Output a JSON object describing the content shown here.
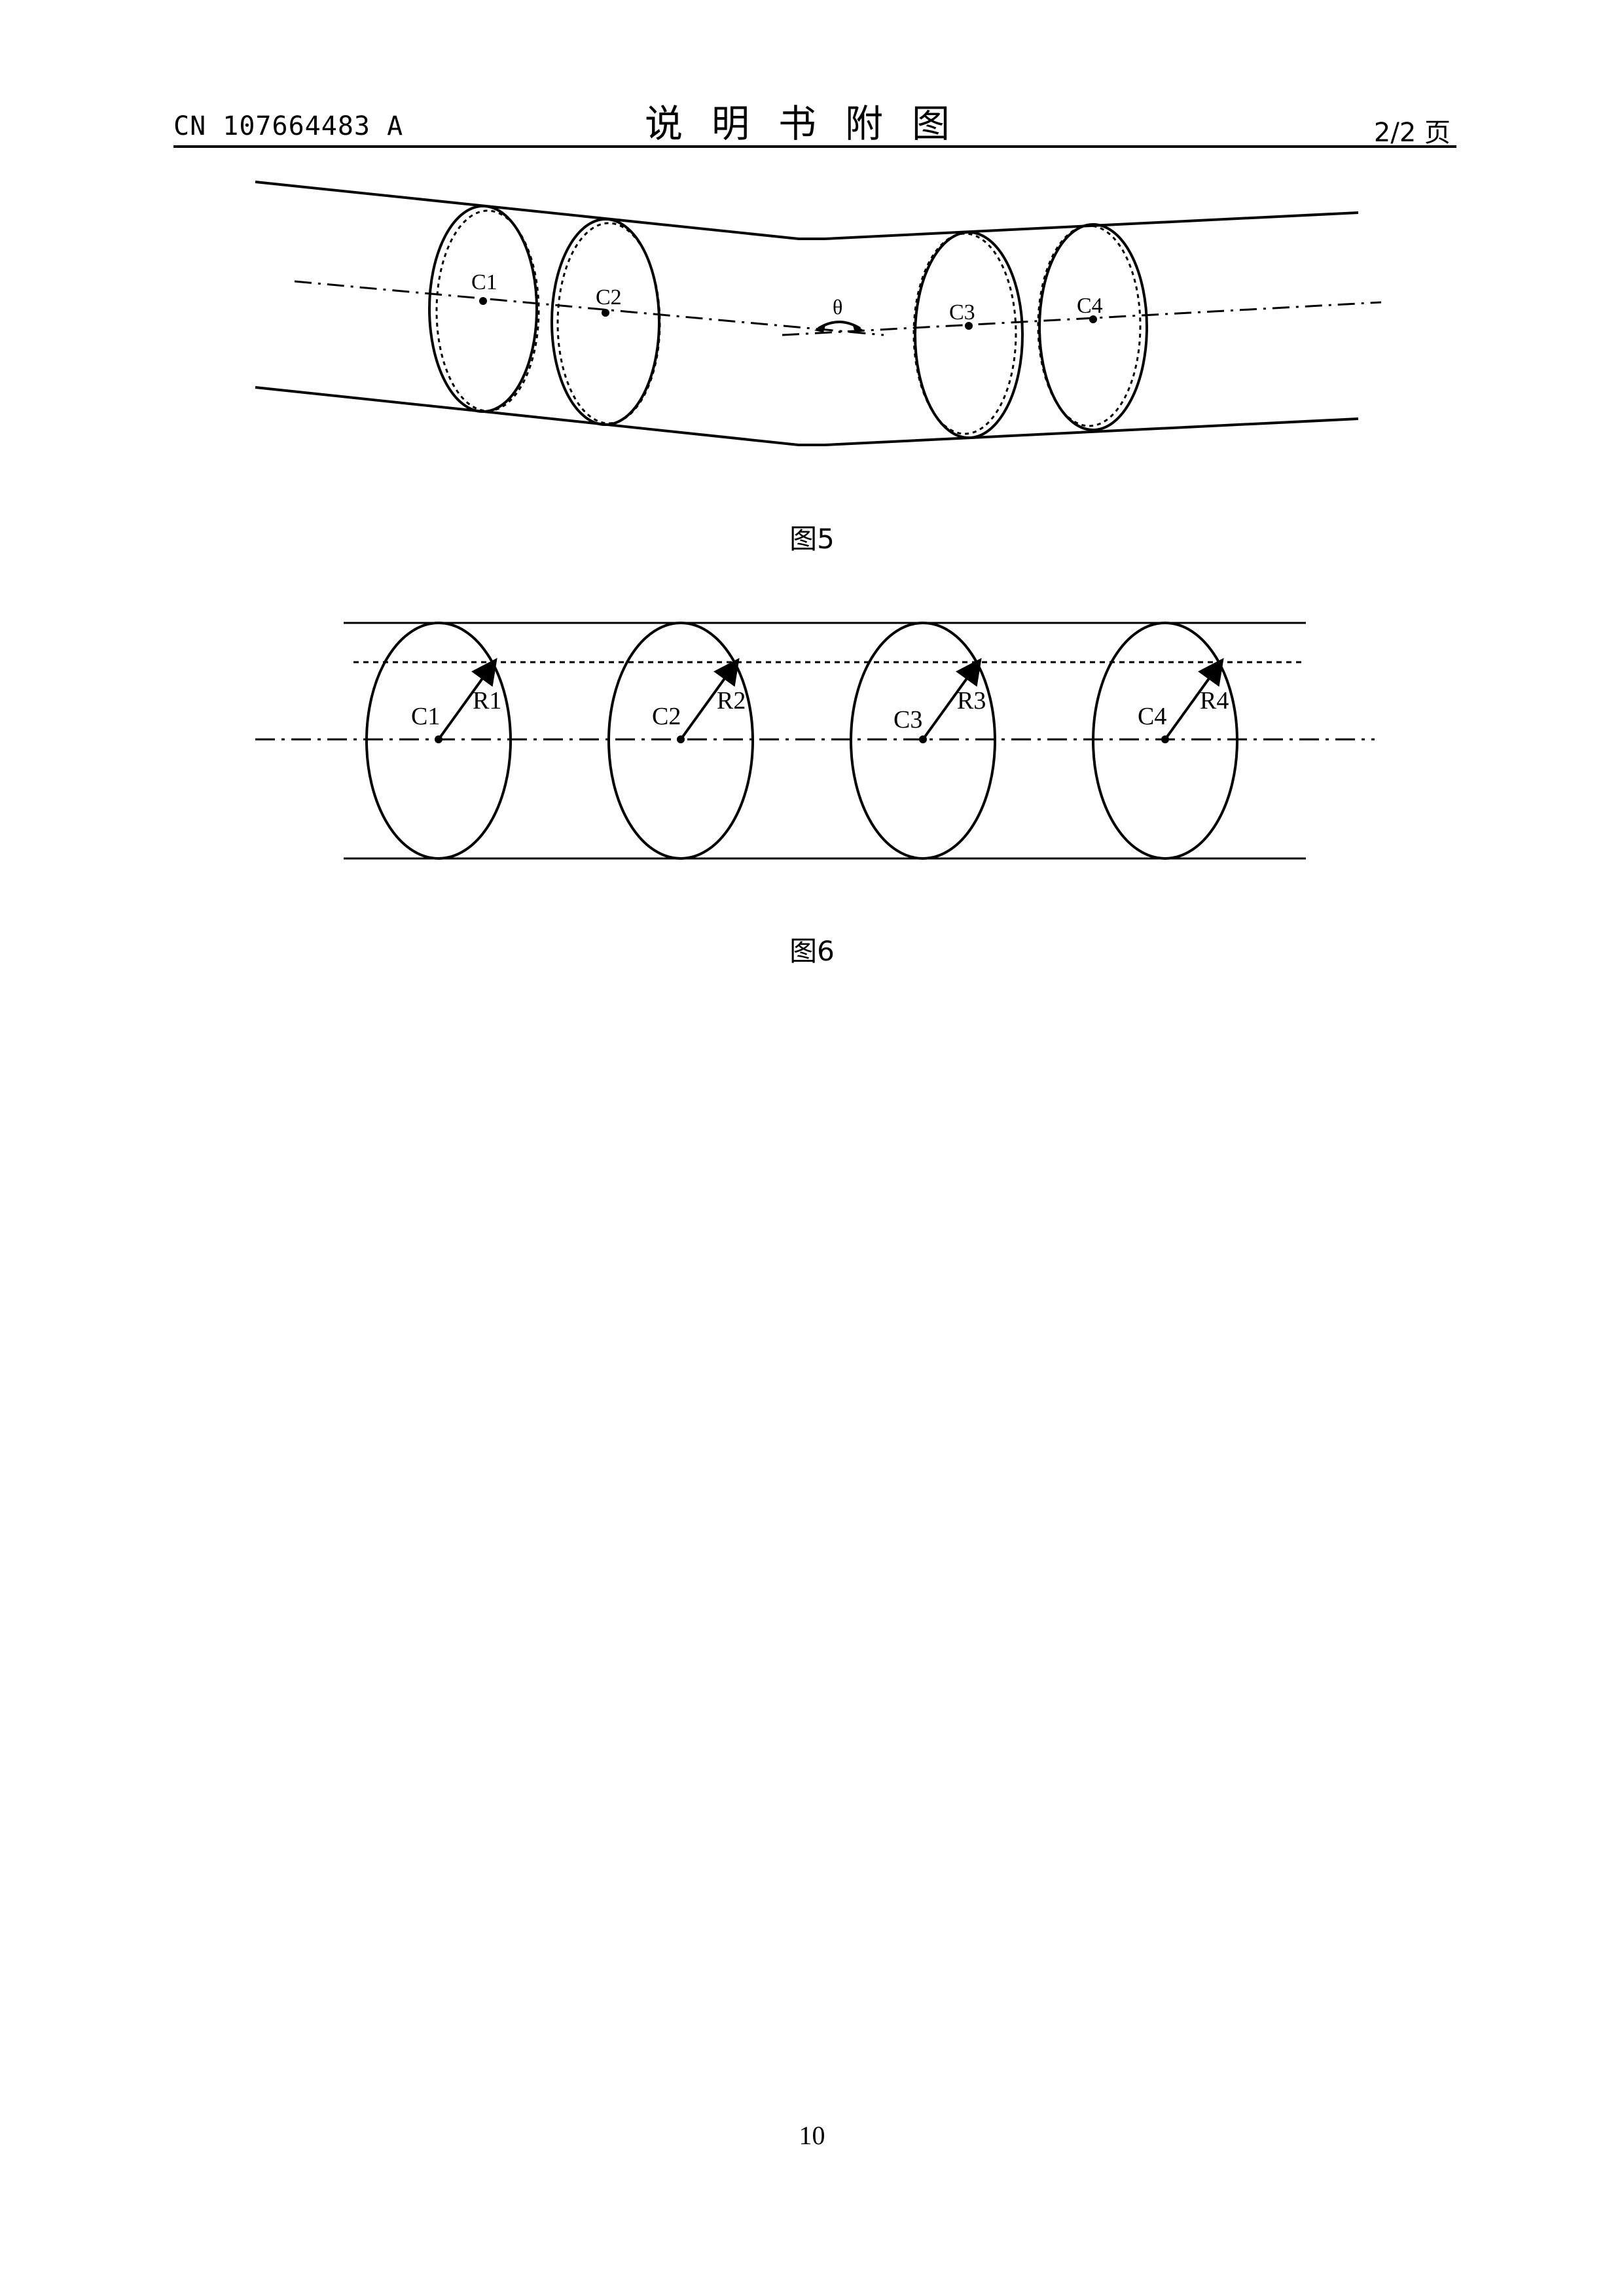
{
  "header": {
    "publication_number": "CN 107664483 A",
    "title": "说明书附图",
    "page_indicator": "2/2 页"
  },
  "figure5": {
    "caption": "图5",
    "center_labels": [
      "C1",
      "C2",
      "C3",
      "C4"
    ],
    "angle_label": "θ"
  },
  "figure6": {
    "caption": "图6",
    "center_labels": [
      "C1",
      "C2",
      "C3",
      "C4"
    ],
    "radius_labels": [
      "R1",
      "R2",
      "R3",
      "R4"
    ]
  },
  "footer": {
    "page_number": "10"
  }
}
